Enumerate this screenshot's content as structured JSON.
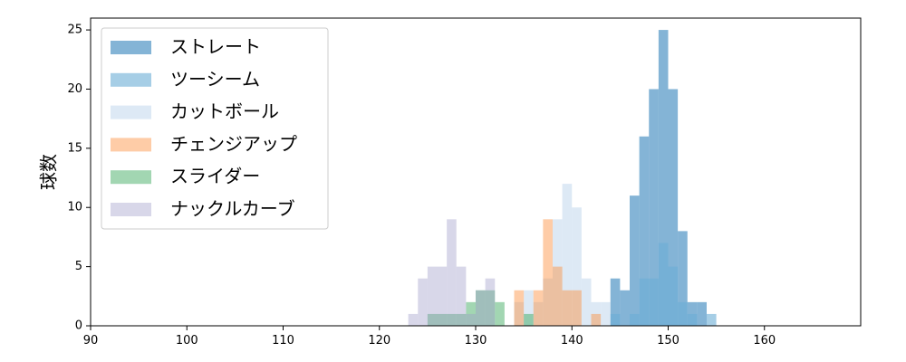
{
  "chart_data": {
    "type": "bar",
    "title": "",
    "xlabel": "",
    "ylabel": "球数",
    "xlim": [
      90,
      170
    ],
    "ylim": [
      0,
      26
    ],
    "xticks": [
      90,
      100,
      110,
      120,
      130,
      140,
      150,
      160
    ],
    "yticks": [
      0,
      5,
      10,
      15,
      20,
      25
    ],
    "bin_width": 1,
    "grid": false,
    "legend_position": "top-left",
    "series": [
      {
        "name": "ストレート",
        "color": "#1f77b4",
        "opacity": 0.55,
        "bins": [
          [
            144,
            4
          ],
          [
            145,
            3
          ],
          [
            146,
            11
          ],
          [
            147,
            16
          ],
          [
            148,
            20
          ],
          [
            149,
            25
          ],
          [
            150,
            20
          ],
          [
            151,
            8
          ],
          [
            152,
            2
          ],
          [
            153,
            2
          ]
        ]
      },
      {
        "name": "ツーシーム",
        "color": "#6baed6",
        "opacity": 0.6,
        "bins": [
          [
            144,
            1
          ],
          [
            146,
            1
          ],
          [
            147,
            4
          ],
          [
            148,
            4
          ],
          [
            149,
            7
          ],
          [
            150,
            5
          ],
          [
            151,
            2
          ],
          [
            152,
            1
          ],
          [
            154,
            1
          ]
        ]
      },
      {
        "name": "カットボール",
        "color": "#c6dbef",
        "opacity": 0.6,
        "bins": [
          [
            134,
            2
          ],
          [
            135,
            3
          ],
          [
            136,
            2
          ],
          [
            137,
            4
          ],
          [
            138,
            9
          ],
          [
            139,
            12
          ],
          [
            140,
            10
          ],
          [
            141,
            4
          ],
          [
            142,
            2
          ],
          [
            143,
            2
          ]
        ]
      },
      {
        "name": "チェンジアップ",
        "color": "#fd8d3c",
        "opacity": 0.45,
        "bins": [
          [
            134,
            3
          ],
          [
            136,
            3
          ],
          [
            137,
            9
          ],
          [
            138,
            5
          ],
          [
            139,
            3
          ],
          [
            140,
            3
          ],
          [
            142,
            1
          ]
        ]
      },
      {
        "name": "スライダー",
        "color": "#31a354",
        "opacity": 0.45,
        "bins": [
          [
            125,
            1
          ],
          [
            126,
            1
          ],
          [
            127,
            1
          ],
          [
            128,
            1
          ],
          [
            129,
            2
          ],
          [
            130,
            3
          ],
          [
            131,
            3
          ],
          [
            132,
            2
          ],
          [
            135,
            1
          ]
        ]
      },
      {
        "name": "ナックルカーブ",
        "color": "#9e9ac8",
        "opacity": 0.4,
        "bins": [
          [
            123,
            1
          ],
          [
            124,
            4
          ],
          [
            125,
            5
          ],
          [
            126,
            5
          ],
          [
            127,
            9
          ],
          [
            128,
            5
          ],
          [
            129,
            1
          ],
          [
            130,
            3
          ],
          [
            131,
            4
          ]
        ]
      }
    ]
  }
}
